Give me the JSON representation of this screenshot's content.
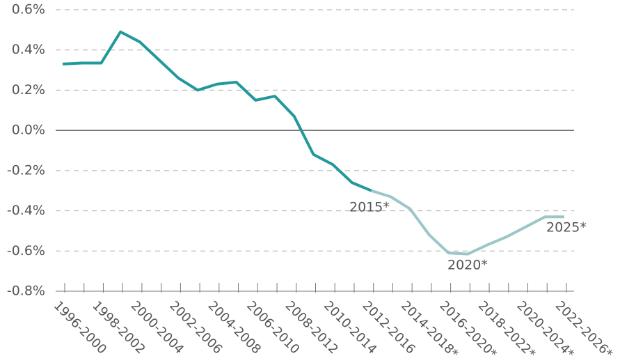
{
  "chart_data": {
    "type": "line",
    "categories": [
      "1996-2000",
      null,
      "1998-2002",
      null,
      "2000-2004",
      null,
      "2002-2006",
      null,
      "2004-2008",
      null,
      "2006-2010",
      null,
      "2008-2012",
      null,
      "2010-2014",
      null,
      "2012-2016",
      null,
      "2014-2018*",
      null,
      "2016-2020*",
      null,
      "2018-2022*",
      null,
      "2020-2024*",
      null,
      "2022-2026*"
    ],
    "series": [
      {
        "color": "#21999a",
        "values": [
          0.33,
          0.335,
          0.335,
          0.49,
          0.44,
          0.35,
          0.26,
          0.2,
          0.23,
          0.24,
          0.15,
          0.17,
          0.07,
          -0.12,
          -0.17,
          -0.26,
          -0.3,
          null,
          null,
          null,
          null,
          null,
          null,
          null,
          null,
          null,
          null
        ]
      },
      {
        "color": "#9cc6c8",
        "values": [
          null,
          null,
          null,
          null,
          null,
          null,
          null,
          null,
          null,
          null,
          null,
          null,
          null,
          null,
          null,
          null,
          -0.3,
          -0.33,
          -0.39,
          -0.52,
          -0.61,
          -0.615,
          -0.57,
          -0.53,
          -0.48,
          -0.43,
          -0.43
        ]
      }
    ],
    "ylim": [
      -0.8,
      0.6
    ],
    "yticks": [
      {
        "value": -0.8,
        "label": "-0.8%"
      },
      {
        "value": -0.6,
        "label": "-0.6%"
      },
      {
        "value": -0.4,
        "label": "-0.4%"
      },
      {
        "value": -0.2,
        "label": "-0.2%"
      },
      {
        "value": 0,
        "label": "0.0%"
      },
      {
        "value": 0.2,
        "label": "0.2%"
      },
      {
        "value": 0.4,
        "label": "0.4%"
      },
      {
        "value": 0.6,
        "label": "0.6%"
      }
    ],
    "grid": true,
    "annotations": [
      "2015*",
      "2020*",
      "2025*"
    ]
  }
}
